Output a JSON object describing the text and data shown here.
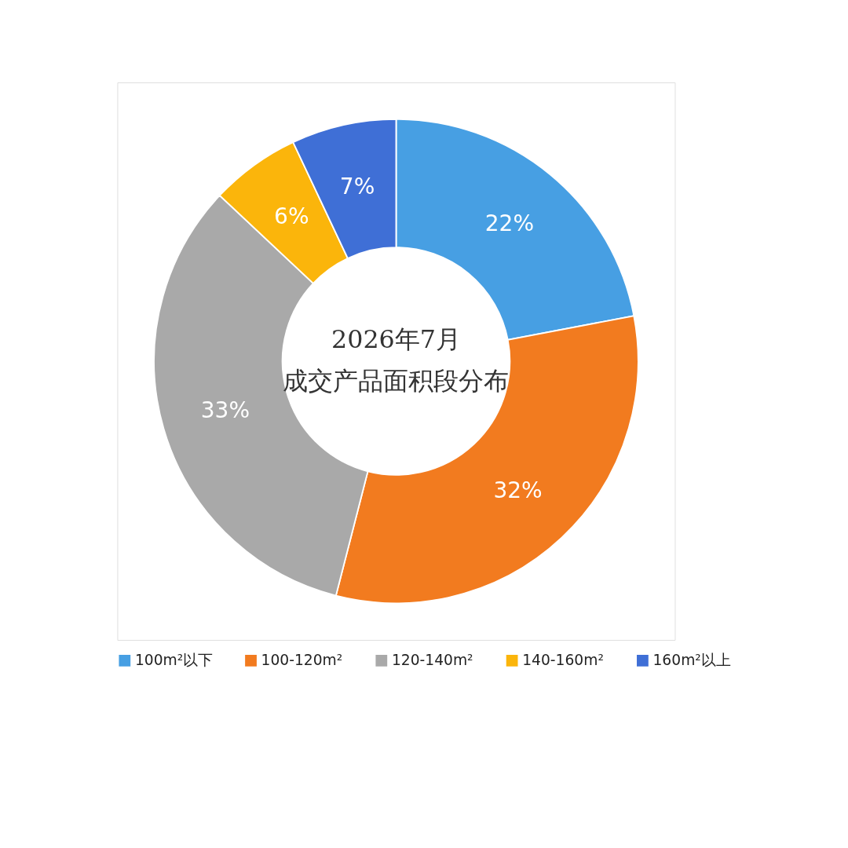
{
  "chart_data": {
    "type": "donut",
    "title": "2026年7月",
    "subtitle": "成交产品面积段分布",
    "categories": [
      "100m²以下",
      "100-120m²",
      "120-140m²",
      "140-160m²",
      "160m²以上"
    ],
    "values": [
      22,
      32,
      33,
      6,
      7
    ],
    "value_labels": [
      "22%",
      "32%",
      "33%",
      "6%",
      "7%"
    ],
    "colors": [
      "#479fe3",
      "#f27b1f",
      "#a9a9a9",
      "#fbb50b",
      "#3f6fd6"
    ],
    "legend": "bottom"
  }
}
